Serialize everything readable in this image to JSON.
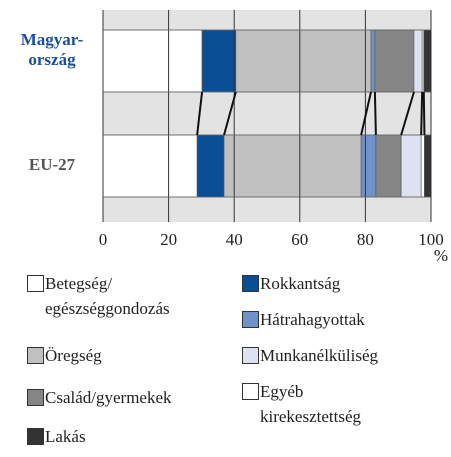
{
  "chart_data": {
    "type": "stacked-bar-horizontal",
    "categories": [
      "Magyar-\nország",
      "EU-27"
    ],
    "category_colors": [
      "#1a4f9c",
      "#555555"
    ],
    "xlim": [
      0,
      100
    ],
    "xticks": [
      0,
      20,
      40,
      60,
      80,
      100
    ],
    "x_unit": "%",
    "series": [
      {
        "name": "Betegség/\negészséggondozás",
        "color": "#ffffff",
        "values": [
          30.2,
          28.7
        ]
      },
      {
        "name": "Rokkantság",
        "color": "#0a4f96",
        "values": [
          10.3,
          8.2
        ]
      },
      {
        "name": "Öregség",
        "color": "#c0c0c0",
        "values": [
          41.2,
          41.8
        ]
      },
      {
        "name": "Hátrahagyottak",
        "color": "#6f93c8",
        "values": [
          1.2,
          4.5
        ]
      },
      {
        "name": "Család/gyermekek",
        "color": "#858585",
        "values": [
          11.9,
          7.7
        ]
      },
      {
        "name": "Munkanélküliség",
        "color": "#dde1f0",
        "values": [
          2.5,
          6.1
        ]
      },
      {
        "name": "Egyéb\nkirekesztettség",
        "color": "#ffffff",
        "values": [
          0.5,
          1.0
        ]
      },
      {
        "name": "Lakás",
        "color": "#333333",
        "values": [
          2.2,
          2.0
        ]
      }
    ]
  }
}
